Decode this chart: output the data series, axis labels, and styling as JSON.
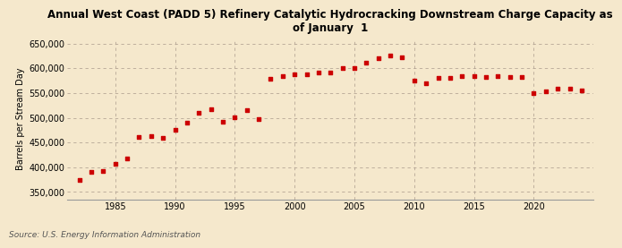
{
  "title": "Annual West Coast (PADD 5) Refinery Catalytic Hydrocracking Downstream Charge Capacity as\nof January  1",
  "ylabel": "Barrels per Stream Day",
  "source": "Source: U.S. Energy Information Administration",
  "background_color": "#f5e8cc",
  "marker_color": "#cc0000",
  "ylim": [
    335000,
    660000
  ],
  "yticks": [
    350000,
    400000,
    450000,
    500000,
    550000,
    600000,
    650000
  ],
  "xticks": [
    1985,
    1990,
    1995,
    2000,
    2005,
    2010,
    2015,
    2020
  ],
  "xlim": [
    1981,
    2025
  ],
  "years": [
    1982,
    1983,
    1984,
    1985,
    1986,
    1987,
    1988,
    1989,
    1990,
    1991,
    1992,
    1993,
    1994,
    1995,
    1996,
    1997,
    1998,
    1999,
    2000,
    2001,
    2002,
    2003,
    2004,
    2005,
    2006,
    2007,
    2008,
    2009,
    2010,
    2011,
    2012,
    2013,
    2014,
    2015,
    2016,
    2017,
    2018,
    2019,
    2020,
    2021,
    2022,
    2023,
    2024
  ],
  "values": [
    375000,
    390000,
    393000,
    406000,
    418000,
    462000,
    463000,
    460000,
    475000,
    490000,
    510000,
    517000,
    492000,
    501000,
    516000,
    497000,
    578000,
    585000,
    587000,
    588000,
    591000,
    591000,
    600000,
    601000,
    612000,
    621000,
    626000,
    623000,
    575000,
    570000,
    581000,
    581000,
    584000,
    585000,
    583000,
    585000,
    582000,
    583000,
    550000,
    554000,
    558000,
    558000,
    556000
  ],
  "title_fontsize": 8.5,
  "tick_fontsize": 7,
  "ylabel_fontsize": 7,
  "source_fontsize": 6.5,
  "marker_size": 12
}
